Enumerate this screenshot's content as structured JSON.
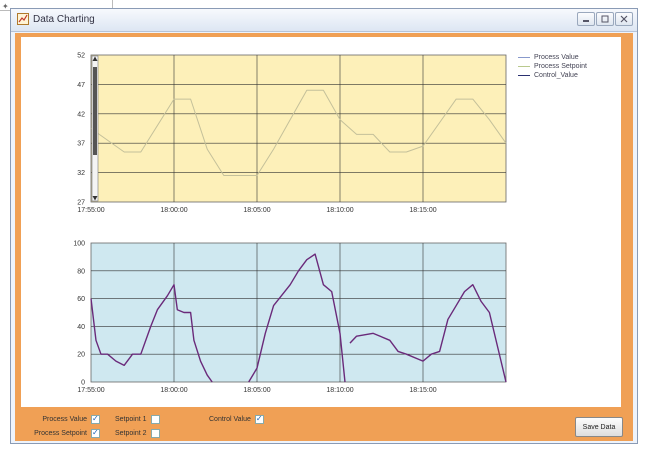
{
  "window": {
    "title": "Data Charting",
    "controls": [
      "minimize-icon",
      "maximize-icon",
      "close-icon"
    ]
  },
  "legend": {
    "items": [
      {
        "label": "Process Value",
        "color": "#8899cc"
      },
      {
        "label": "Process Setpoint",
        "color": "#b9c98e"
      },
      {
        "label": "Control_Value",
        "color": "#2a3070"
      }
    ]
  },
  "checkboxes": [
    {
      "label": "Process Value",
      "checked": true
    },
    {
      "label": "Process Setpoint",
      "checked": true
    },
    {
      "label": "Setpoint 1",
      "checked": false
    },
    {
      "label": "Setpoint 2",
      "checked": false
    },
    {
      "label": "Control Value",
      "checked": true
    }
  ],
  "save_button": {
    "label": "Save Data"
  },
  "colors": {
    "accent": "#f0a055",
    "top_chart_bg": "#fdf0b9",
    "bottom_chart_bg": "#cfe8f0",
    "setpoint_line": "#c4c09a",
    "control_line": "#6a2a7a"
  },
  "chart_data": [
    {
      "type": "line",
      "xlim_minutes": [
        0,
        25
      ],
      "x_tick_labels": [
        "17:55:00",
        "18:00:00",
        "18:05:00",
        "18:10:00",
        "18:15:00"
      ],
      "y_tick_labels": [
        "27",
        "32",
        "37",
        "42",
        "47",
        "52"
      ],
      "ylim": [
        27,
        52
      ],
      "grid": true,
      "legend": "right",
      "series": [
        {
          "x": [
            0,
            2,
            3,
            5,
            6,
            7,
            8,
            10,
            11,
            12,
            13,
            14,
            15,
            16,
            17,
            18,
            19,
            20,
            21,
            22,
            23,
            24,
            25
          ],
          "y": [
            39.5,
            35.5,
            35.5,
            44.5,
            44.5,
            36,
            31.5,
            31.5,
            36,
            41,
            46,
            46,
            41,
            38.5,
            38.5,
            35.5,
            35.5,
            36.5,
            40.5,
            44.5,
            44.5,
            41,
            37
          ]
        }
      ]
    },
    {
      "type": "line",
      "xlim_minutes": [
        0,
        25
      ],
      "x_tick_labels": [
        "17:55:00",
        "18:00:00",
        "18:05:00",
        "18:10:00",
        "18:15:00"
      ],
      "y_tick_labels": [
        "0",
        "20",
        "40",
        "60",
        "80",
        "100"
      ],
      "ylim": [
        0,
        100
      ],
      "grid": true,
      "series": [
        {
          "x": [
            0,
            0.3,
            0.6,
            1,
            1.5,
            2,
            2.5,
            3,
            3.6,
            4,
            4.6,
            5,
            5.2,
            5.6,
            6,
            6.2,
            6.6,
            7,
            7.3
          ],
          "y": [
            60,
            30,
            20,
            20,
            15,
            12,
            20,
            20,
            40,
            52,
            62,
            70,
            52,
            50,
            50,
            30,
            15,
            5,
            0
          ]
        },
        {
          "x": [
            9.5,
            10,
            10.5,
            11,
            12,
            12.5,
            13,
            13.5,
            14,
            14.5,
            15,
            15.3
          ],
          "y": [
            0,
            10,
            35,
            55,
            70,
            80,
            88,
            92,
            70,
            65,
            35,
            0
          ]
        },
        {
          "x": [
            15.6,
            16,
            17,
            18,
            18.5,
            19,
            20,
            20.5,
            21,
            21.5,
            22,
            22.5,
            23,
            23.5,
            24,
            24.5,
            25
          ],
          "y": [
            28,
            33,
            35,
            30,
            22,
            20,
            15,
            20,
            22,
            45,
            55,
            65,
            70,
            58,
            50,
            25,
            0
          ]
        }
      ]
    }
  ]
}
